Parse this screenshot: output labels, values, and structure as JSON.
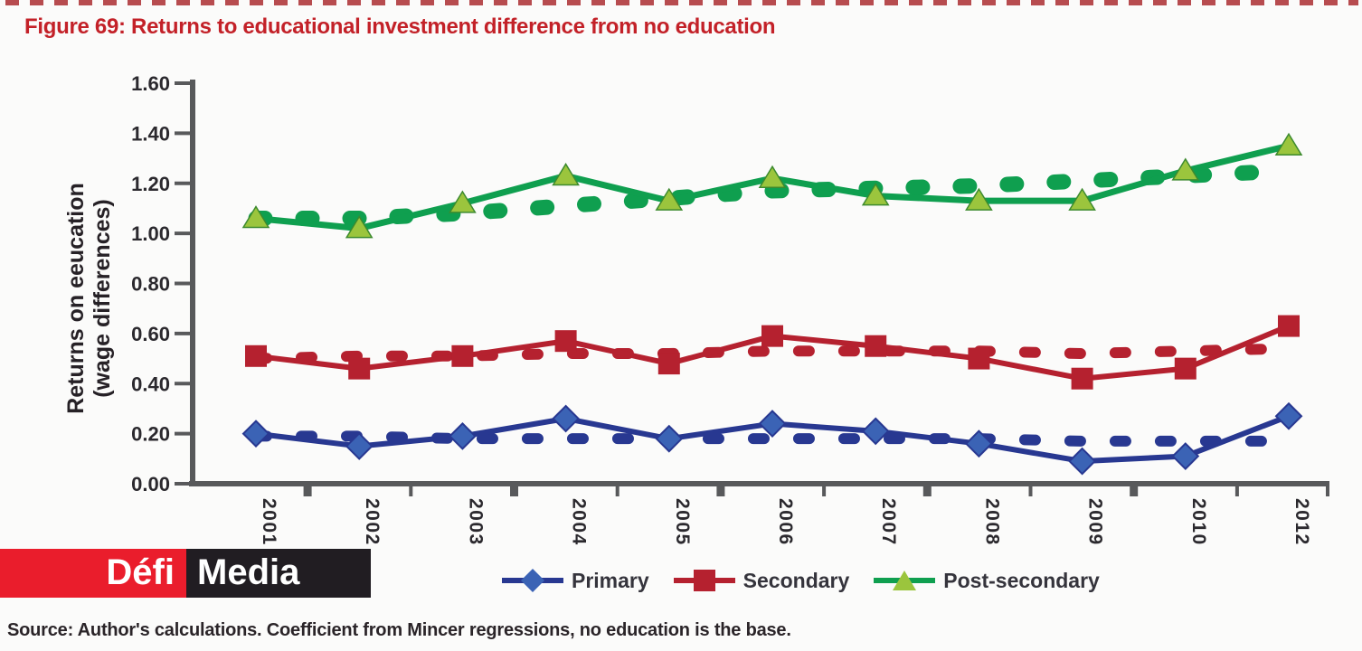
{
  "page": {
    "title": "Figure 69: Returns to educational investment difference from no education",
    "source": "Source: Author's calculations. Coefficient from Mincer regressions, no education is the base."
  },
  "logo": {
    "part1": "Défi",
    "part2": "Media"
  },
  "colors": {
    "title_red": "#c32128",
    "axis_gray": "#58595b",
    "primary_blue": "#283891",
    "primary_marker_blue": "#3b63b5",
    "secondary_red": "#b5212f",
    "postsecondary_green": "#0f9f4f",
    "postsecondary_marker_green": "#9bc53d",
    "logo_red": "#ea1d2c",
    "logo_black": "#211d22"
  },
  "legend": {
    "items": [
      {
        "label": "Primary",
        "marker": "diamond",
        "color": "#283891",
        "marker_fill": "#3b63b5"
      },
      {
        "label": "Secondary",
        "marker": "square",
        "color": "#b5212f",
        "marker_fill": "#b5212f"
      },
      {
        "label": "Post-secondary",
        "marker": "triangle",
        "color": "#0f9f4f",
        "marker_fill": "#9bc53d"
      }
    ]
  },
  "chart_data": {
    "type": "line",
    "title": "Figure 69: Returns to educational investment difference from no education",
    "ylabel": "Returns on eeucation (wage differences)",
    "ylabel_lines": [
      "Returns on eeucation",
      "(wage differences)"
    ],
    "categories": [
      "2001",
      "2002",
      "2003",
      "2004",
      "2005",
      "2006",
      "2007",
      "2008",
      "2009",
      "2010",
      "2012"
    ],
    "y_ticks": [
      "0.00",
      "0.20",
      "0.40",
      "0.60",
      "0.80",
      "1.00",
      "1.20",
      "1.40",
      "1.60"
    ],
    "ylim": [
      0,
      1.6
    ],
    "grid": false,
    "legend_position": "bottom",
    "series": [
      {
        "name": "Primary",
        "type": "solid",
        "marker": "diamond",
        "color": "#283891",
        "marker_fill": "#3b63b5",
        "values": [
          0.2,
          0.15,
          0.19,
          0.26,
          0.18,
          0.24,
          0.21,
          0.16,
          0.09,
          0.11,
          0.27
        ]
      },
      {
        "name": "Primary trend",
        "type": "dashed",
        "marker": "none",
        "color": "#283891",
        "values": [
          0.19,
          0.19,
          0.18,
          0.18,
          0.18,
          0.18,
          0.18,
          0.18,
          0.17,
          0.17,
          0.17
        ]
      },
      {
        "name": "Secondary",
        "type": "solid",
        "marker": "square",
        "color": "#b5212f",
        "marker_fill": "#b5212f",
        "values": [
          0.51,
          0.46,
          0.51,
          0.57,
          0.48,
          0.59,
          0.55,
          0.5,
          0.42,
          0.46,
          0.63
        ]
      },
      {
        "name": "Secondary trend",
        "type": "dashed",
        "marker": "none",
        "color": "#b5212f",
        "values": [
          0.5,
          0.51,
          0.51,
          0.52,
          0.52,
          0.53,
          0.53,
          0.53,
          0.52,
          0.53,
          0.54
        ]
      },
      {
        "name": "Post-secondary",
        "type": "solid",
        "marker": "triangle",
        "color": "#0f9f4f",
        "marker_fill": "#9bc53d",
        "values": [
          1.06,
          1.02,
          1.12,
          1.23,
          1.13,
          1.22,
          1.15,
          1.13,
          1.13,
          1.25,
          1.35
        ]
      },
      {
        "name": "Post-secondary trend",
        "type": "dashed",
        "marker": "none",
        "color": "#0f9f4f",
        "values": [
          1.06,
          1.06,
          1.08,
          1.11,
          1.14,
          1.17,
          1.18,
          1.19,
          1.21,
          1.23,
          1.25
        ]
      }
    ]
  }
}
